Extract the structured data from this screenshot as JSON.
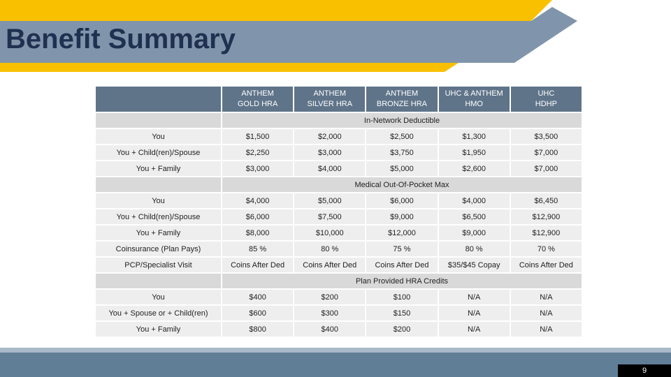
{
  "header": {
    "title": "Benefit Summary"
  },
  "table": {
    "columns": [
      "ANTHEM\nGOLD HRA",
      "ANTHEM\nSILVER HRA",
      "ANTHEM\nBRONZE HRA",
      "UHC & ANTHEM\nHMO",
      "UHC\nHDHP"
    ],
    "sections": [
      {
        "title": "In-Network Deductible",
        "rows": [
          {
            "label": "You",
            "cells": [
              "$1,500",
              "$2,000",
              "$2,500",
              "$1,300",
              "$3,500"
            ]
          },
          {
            "label": "You + Child(ren)/Spouse",
            "cells": [
              "$2,250",
              "$3,000",
              "$3,750",
              "$1,950",
              "$7,000"
            ]
          },
          {
            "label": "You + Family",
            "cells": [
              "$3,000",
              "$4,000",
              "$5,000",
              "$2,600",
              "$7,000"
            ]
          }
        ]
      },
      {
        "title": "Medical Out-Of-Pocket Max",
        "rows": [
          {
            "label": "You",
            "cells": [
              "$4,000",
              "$5,000",
              "$6,000",
              "$4,000",
              "$6,450"
            ]
          },
          {
            "label": "You + Child(ren)/Spouse",
            "cells": [
              "$6,000",
              "$7,500",
              "$9,000",
              "$6,500",
              "$12,900"
            ]
          },
          {
            "label": "You + Family",
            "cells": [
              "$8,000",
              "$10,000",
              "$12,000",
              "$9,000",
              "$12,900"
            ]
          },
          {
            "label": "Coinsurance (Plan Pays)",
            "cells": [
              "85 %",
              "80 %",
              "75 %",
              "80 %",
              "70 %"
            ]
          },
          {
            "label": "PCP/Specialist Visit",
            "cells": [
              "Coins After Ded",
              "Coins After Ded",
              "Coins After Ded",
              "$35/$45 Copay",
              "Coins After Ded"
            ]
          }
        ]
      },
      {
        "title": "Plan Provided HRA Credits",
        "rows": [
          {
            "label": "You",
            "cells": [
              "$400",
              "$200",
              "$100",
              "N/A",
              "N/A"
            ]
          },
          {
            "label": "You + Spouse or + Child(ren)",
            "cells": [
              "$600",
              "$300",
              "$150",
              "N/A",
              "N/A"
            ]
          },
          {
            "label": "You + Family",
            "cells": [
              "$800",
              "$400",
              "$200",
              "N/A",
              "N/A"
            ]
          }
        ]
      }
    ]
  },
  "page_number": "9"
}
